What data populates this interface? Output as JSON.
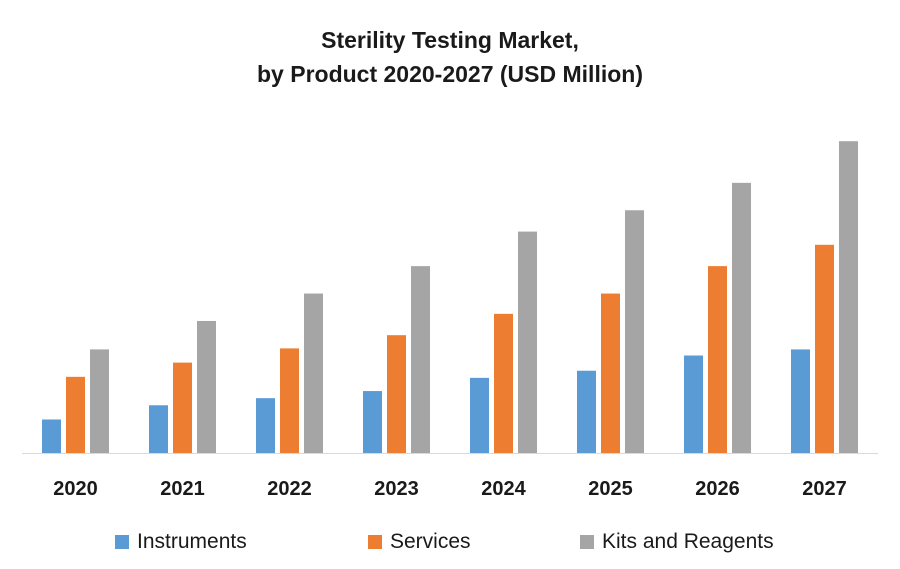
{
  "title_line1": "Sterility Testing Market,",
  "title_line2": "by Product 2020-2027 (USD Million)",
  "chart_data": {
    "type": "bar",
    "title": "Sterility Testing Market, by Product 2020-2027 (USD Million)",
    "categories": [
      "2020",
      "2021",
      "2022",
      "2023",
      "2024",
      "2025",
      "2026",
      "2027"
    ],
    "series": [
      {
        "name": "Instruments",
        "color": "#5b9bd5",
        "values": [
          33,
          47,
          54,
          61,
          74,
          81,
          96,
          102
        ]
      },
      {
        "name": "Services",
        "color": "#ed7d31",
        "values": [
          75,
          89,
          103,
          116,
          137,
          157,
          184,
          205
        ]
      },
      {
        "name": "Kits and Reagents",
        "color": "#a5a5a5",
        "values": [
          102,
          130,
          157,
          184,
          218,
          239,
          266,
          307
        ]
      }
    ],
    "ylim": [
      0,
      320
    ],
    "grid": false,
    "legend_position": "bottom"
  }
}
